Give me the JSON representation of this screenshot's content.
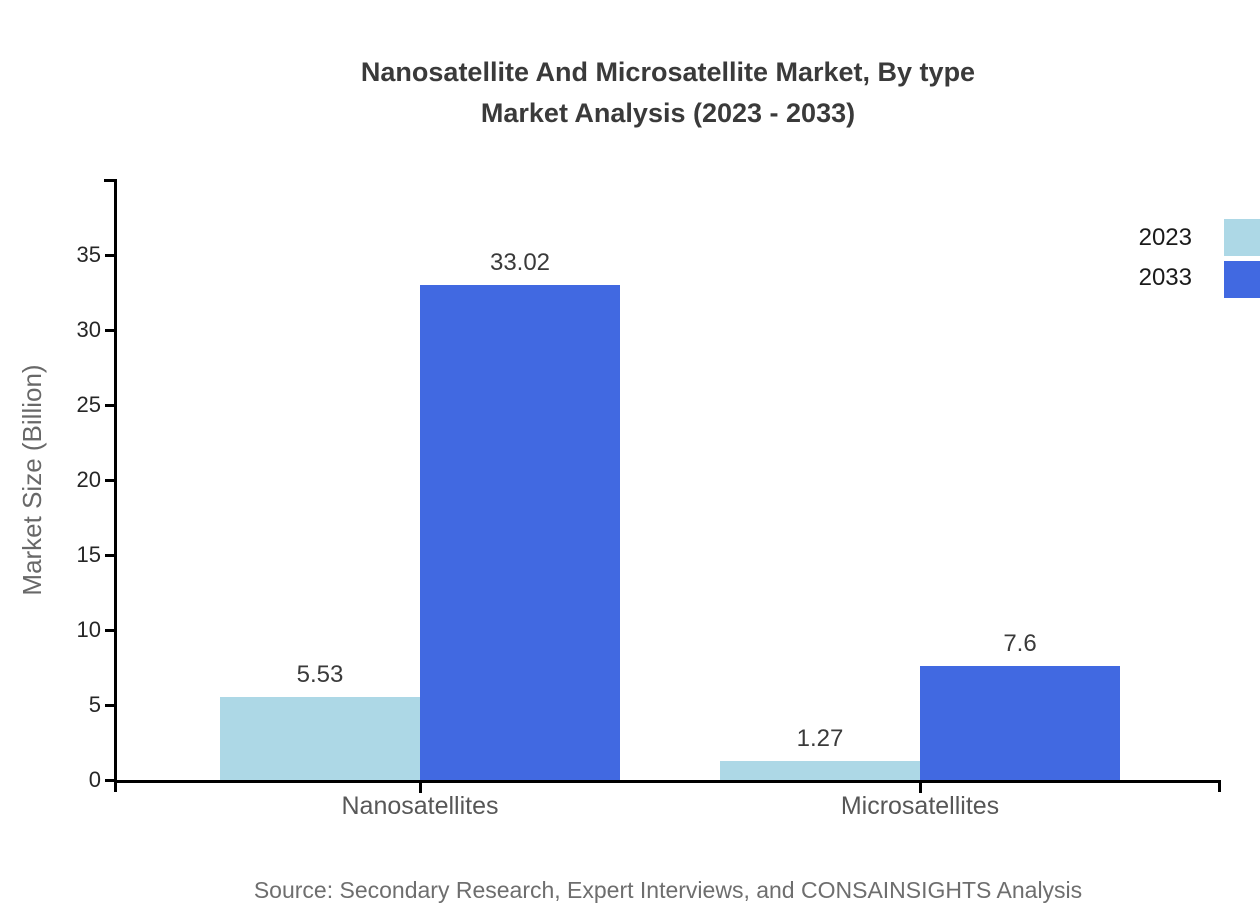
{
  "title": {
    "line1": "Nanosatellite And Microsatellite Market, By type",
    "line2": "Market Analysis (2023 - 2033)"
  },
  "source": "Source: Secondary Research, Expert Interviews, and CONSAINSIGHTS Analysis",
  "legend": {
    "items": [
      {
        "label": "2023",
        "color": "#ADD8E6"
      },
      {
        "label": "2033",
        "color": "#4169E1"
      }
    ]
  },
  "chart_data": {
    "type": "bar",
    "title": "Nanosatellite And Microsatellite Market, By type - Market Analysis (2023 - 2033)",
    "categories": [
      "Nanosatellites",
      "Microsatellites"
    ],
    "series": [
      {
        "name": "2023",
        "color": "#ADD8E6",
        "values": [
          5.53,
          1.27
        ]
      },
      {
        "name": "2033",
        "color": "#4169E1",
        "values": [
          33.02,
          7.6
        ]
      }
    ],
    "xlabel": "",
    "ylabel": "Market Size (Billion)",
    "ylim": [
      0,
      40
    ],
    "yticks": [
      0,
      5,
      10,
      15,
      20,
      25,
      30,
      35
    ],
    "grid": false,
    "legend_position": "top-right",
    "value_labels_shown": true,
    "axis_color": "#000000"
  }
}
